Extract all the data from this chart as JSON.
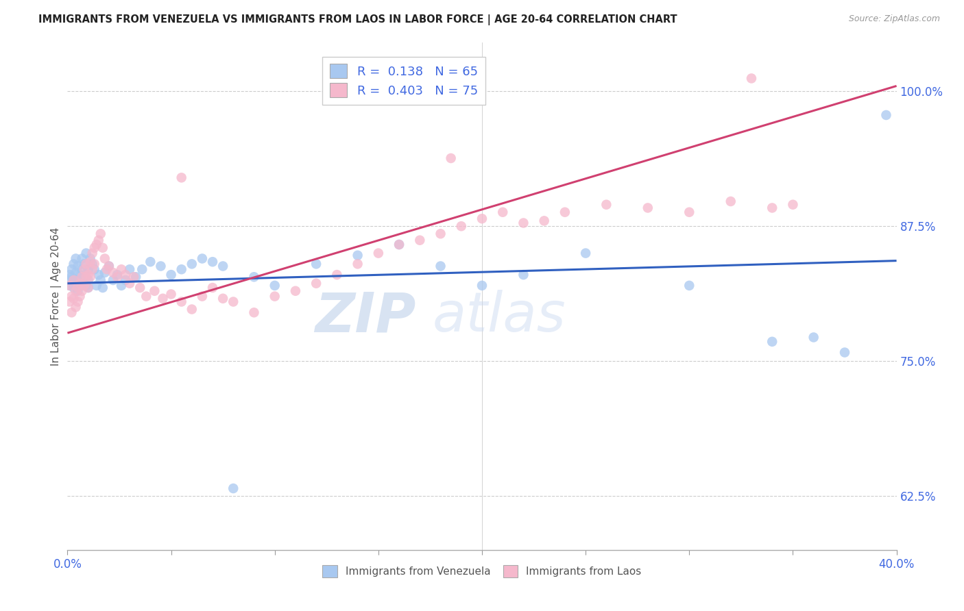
{
  "title": "IMMIGRANTS FROM VENEZUELA VS IMMIGRANTS FROM LAOS IN LABOR FORCE | AGE 20-64 CORRELATION CHART",
  "source": "Source: ZipAtlas.com",
  "ylabel": "In Labor Force | Age 20-64",
  "xlim": [
    0.0,
    0.4
  ],
  "ylim": [
    0.575,
    1.045
  ],
  "xticks": [
    0.0,
    0.05,
    0.1,
    0.15,
    0.2,
    0.25,
    0.3,
    0.35,
    0.4
  ],
  "ytick_positions": [
    0.625,
    0.75,
    0.875,
    1.0
  ],
  "ytick_labels": [
    "62.5%",
    "75.0%",
    "87.5%",
    "100.0%"
  ],
  "watermark": "ZIPatlas",
  "legend_blue_label": "R =  0.138   N = 65",
  "legend_pink_label": "R =  0.403   N = 75",
  "legend_blue_entry": "Immigrants from Venezuela",
  "legend_pink_entry": "Immigrants from Laos",
  "blue_color": "#a8c8f0",
  "pink_color": "#f5b8cc",
  "blue_line_color": "#3060c0",
  "pink_line_color": "#d04070",
  "axis_color": "#4169E1",
  "blue_line_x0": 0.0,
  "blue_line_y0": 0.822,
  "blue_line_x1": 0.4,
  "blue_line_y1": 0.843,
  "pink_line_x0": 0.0,
  "pink_line_y0": 0.776,
  "pink_line_x1": 0.4,
  "pink_line_y1": 1.005,
  "blue_scatter_x": [
    0.001,
    0.001,
    0.001,
    0.002,
    0.002,
    0.003,
    0.003,
    0.003,
    0.004,
    0.004,
    0.004,
    0.005,
    0.005,
    0.005,
    0.006,
    0.006,
    0.007,
    0.007,
    0.007,
    0.008,
    0.008,
    0.009,
    0.009,
    0.01,
    0.01,
    0.01,
    0.011,
    0.012,
    0.013,
    0.014,
    0.015,
    0.016,
    0.017,
    0.018,
    0.02,
    0.022,
    0.024,
    0.026,
    0.028,
    0.03,
    0.033,
    0.036,
    0.04,
    0.045,
    0.05,
    0.055,
    0.06,
    0.065,
    0.07,
    0.075,
    0.08,
    0.09,
    0.1,
    0.12,
    0.14,
    0.16,
    0.18,
    0.2,
    0.22,
    0.25,
    0.3,
    0.34,
    0.36,
    0.375,
    0.395
  ],
  "blue_scatter_y": [
    0.83,
    0.825,
    0.82,
    0.835,
    0.828,
    0.84,
    0.825,
    0.818,
    0.832,
    0.845,
    0.822,
    0.838,
    0.815,
    0.825,
    0.83,
    0.82,
    0.835,
    0.845,
    0.822,
    0.84,
    0.828,
    0.85,
    0.82,
    0.835,
    0.825,
    0.818,
    0.845,
    0.84,
    0.835,
    0.82,
    0.83,
    0.825,
    0.818,
    0.832,
    0.838,
    0.825,
    0.83,
    0.82,
    0.825,
    0.835,
    0.828,
    0.835,
    0.842,
    0.838,
    0.83,
    0.835,
    0.84,
    0.845,
    0.842,
    0.838,
    0.632,
    0.828,
    0.82,
    0.84,
    0.848,
    0.858,
    0.838,
    0.82,
    0.83,
    0.85,
    0.82,
    0.768,
    0.772,
    0.758,
    0.978
  ],
  "pink_scatter_x": [
    0.001,
    0.001,
    0.002,
    0.002,
    0.003,
    0.003,
    0.004,
    0.004,
    0.005,
    0.005,
    0.006,
    0.006,
    0.007,
    0.007,
    0.008,
    0.008,
    0.009,
    0.009,
    0.01,
    0.01,
    0.011,
    0.011,
    0.012,
    0.012,
    0.013,
    0.013,
    0.014,
    0.015,
    0.016,
    0.017,
    0.018,
    0.019,
    0.02,
    0.022,
    0.024,
    0.026,
    0.028,
    0.03,
    0.032,
    0.035,
    0.038,
    0.042,
    0.046,
    0.05,
    0.055,
    0.06,
    0.065,
    0.07,
    0.075,
    0.08,
    0.09,
    0.1,
    0.11,
    0.12,
    0.13,
    0.14,
    0.15,
    0.16,
    0.17,
    0.18,
    0.19,
    0.2,
    0.21,
    0.22,
    0.23,
    0.24,
    0.26,
    0.28,
    0.3,
    0.32,
    0.34,
    0.35,
    0.055,
    0.185,
    0.33
  ],
  "pink_scatter_y": [
    0.82,
    0.805,
    0.81,
    0.795,
    0.825,
    0.808,
    0.815,
    0.8,
    0.818,
    0.805,
    0.822,
    0.81,
    0.828,
    0.815,
    0.835,
    0.82,
    0.828,
    0.84,
    0.83,
    0.818,
    0.842,
    0.828,
    0.85,
    0.835,
    0.855,
    0.84,
    0.858,
    0.862,
    0.868,
    0.855,
    0.845,
    0.835,
    0.838,
    0.832,
    0.828,
    0.835,
    0.83,
    0.822,
    0.828,
    0.818,
    0.81,
    0.815,
    0.808,
    0.812,
    0.805,
    0.798,
    0.81,
    0.818,
    0.808,
    0.805,
    0.795,
    0.81,
    0.815,
    0.822,
    0.83,
    0.84,
    0.85,
    0.858,
    0.862,
    0.868,
    0.875,
    0.882,
    0.888,
    0.878,
    0.88,
    0.888,
    0.895,
    0.892,
    0.888,
    0.898,
    0.892,
    0.895,
    0.92,
    0.938,
    1.012
  ]
}
